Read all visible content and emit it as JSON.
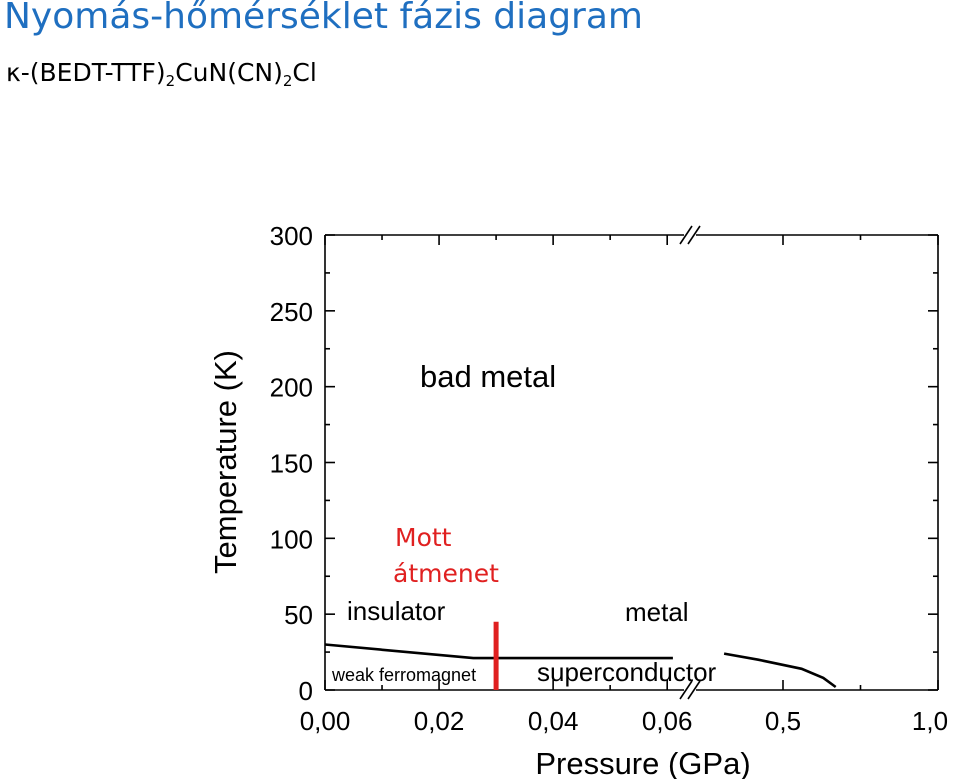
{
  "slide": {
    "title": "Nyomás-hőmérséklet fázis diagram",
    "compound": {
      "prefix": "κ-(BEDT-TTF)",
      "sub1": "2",
      "middle": "CuN(CN)",
      "sub2": "2",
      "suffix": "Cl"
    }
  },
  "colors": {
    "title": "#1f6fc0",
    "mott": "#e02020",
    "axis": "#000000"
  },
  "chart_data": {
    "type": "phase-diagram",
    "xlabel": "Pressure (GPa)",
    "ylabel": "Temperature (K)",
    "ylim": [
      0,
      300
    ],
    "y_ticks": [
      0,
      50,
      100,
      150,
      200,
      250,
      300
    ],
    "x_segments": [
      {
        "range": [
          0.0,
          0.064
        ],
        "tick_labels": [
          "0,00",
          "0,02",
          "0,04",
          "0,06"
        ],
        "tick_values": [
          0.0,
          0.02,
          0.04,
          0.06
        ]
      },
      {
        "range": [
          0.2,
          1.0
        ],
        "tick_labels": [
          "0,5",
          "1,0"
        ],
        "tick_values": [
          0.5,
          1.0
        ]
      }
    ],
    "axis_break": "between 0,06 and 0,5",
    "regions": [
      "bad metal",
      "insulator",
      "metal",
      "weak ferromagnet",
      "superconductor"
    ],
    "annotation": {
      "lines": [
        "Mott",
        "átmenet"
      ],
      "pressure": 0.03,
      "t_range": [
        0,
        45
      ]
    },
    "boundaries": [
      {
        "name": "ferromagnet boundary",
        "points": [
          [
            0.0,
            30
          ],
          [
            0.026,
            21
          ],
          [
            0.061,
            21
          ]
        ]
      },
      {
        "name": "superconductor boundary",
        "points": [
          [
            0.31,
            24
          ],
          [
            0.42,
            20
          ],
          [
            0.56,
            14
          ],
          [
            0.63,
            8
          ],
          [
            0.67,
            2
          ]
        ]
      }
    ],
    "grid": false
  }
}
